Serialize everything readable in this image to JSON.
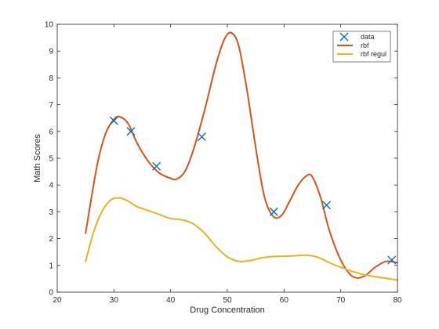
{
  "chart_data": {
    "type": "line",
    "title": "",
    "xlabel": "Drug Concentration",
    "ylabel": "Math Scores",
    "xlim": [
      20,
      80
    ],
    "ylim": [
      0,
      10
    ],
    "x_ticks": [
      20,
      30,
      40,
      50,
      60,
      70,
      80
    ],
    "y_ticks": [
      0,
      1,
      2,
      3,
      4,
      5,
      6,
      7,
      8,
      9,
      10
    ],
    "grid": false,
    "legend_position": "top-right",
    "series": [
      {
        "name": "data",
        "kind": "markers",
        "marker": "x",
        "color": "#0072bd",
        "x": [
          30.0,
          33.0,
          37.5,
          45.5,
          58.2,
          67.5,
          79.0
        ],
        "y": [
          6.4,
          6.0,
          4.7,
          5.8,
          3.0,
          3.25,
          1.2
        ]
      },
      {
        "name": "rbf",
        "kind": "line",
        "color": "#d95319",
        "x": [
          25,
          27,
          28.5,
          30,
          31,
          32.5,
          34,
          36,
          38,
          40,
          41,
          42.5,
          44,
          46,
          48,
          49.5,
          50.7,
          52,
          53.5,
          55,
          56.5,
          58,
          59.5,
          61,
          62.5,
          64,
          65,
          66.5,
          68,
          70,
          72,
          74,
          76,
          78,
          80
        ],
        "y": [
          2.2,
          4.7,
          5.9,
          6.45,
          6.55,
          6.3,
          5.6,
          4.9,
          4.45,
          4.25,
          4.22,
          4.5,
          5.3,
          6.8,
          8.5,
          9.45,
          9.68,
          9.2,
          7.5,
          5.4,
          3.6,
          2.85,
          2.85,
          3.4,
          4.0,
          4.35,
          4.3,
          3.5,
          2.3,
          1.2,
          0.6,
          0.58,
          0.92,
          1.15,
          1.1
        ]
      },
      {
        "name": "rbf regul",
        "kind": "line",
        "color": "#edb120",
        "x": [
          25,
          26.5,
          28,
          29.5,
          31,
          32.5,
          34,
          36,
          38,
          40,
          42,
          44,
          46,
          48,
          50,
          52,
          54,
          56,
          58,
          60,
          62,
          64,
          66,
          68,
          70,
          72,
          74,
          76,
          78,
          80
        ],
        "y": [
          1.15,
          2.3,
          3.05,
          3.45,
          3.52,
          3.4,
          3.2,
          3.05,
          2.9,
          2.75,
          2.7,
          2.55,
          2.2,
          1.7,
          1.32,
          1.15,
          1.18,
          1.28,
          1.33,
          1.34,
          1.36,
          1.38,
          1.3,
          1.1,
          0.93,
          0.78,
          0.66,
          0.58,
          0.52,
          0.45
        ]
      }
    ]
  }
}
